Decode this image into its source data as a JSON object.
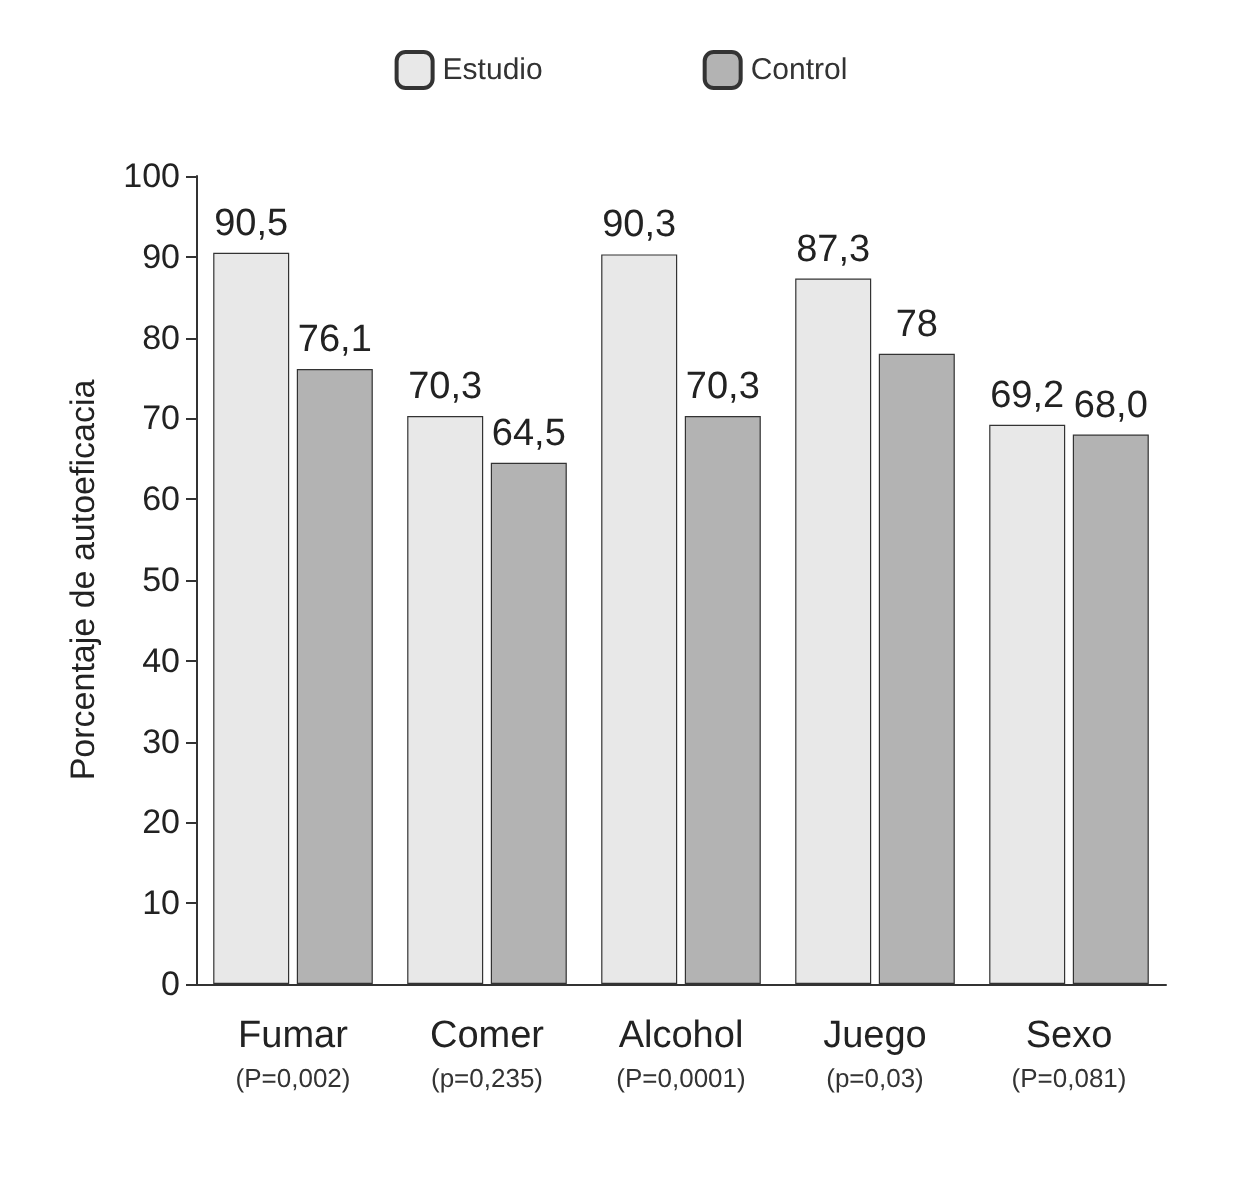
{
  "chart_data": {
    "type": "bar",
    "ylabel": "Porcentaje de autoeficacia",
    "categories": [
      "Fumar\n(P=0,002)",
      "Comer\n(p=0,235)",
      "Alcohol\n(P=0,0001)",
      "Juego\n(p=0,03)",
      "Sexo\n(P=0,081)"
    ],
    "series": [
      {
        "name": "Estudio",
        "color": "#e8e8e8",
        "values": [
          90.5,
          70.3,
          90.3,
          87.3,
          69.2
        ],
        "value_labels": [
          "90,5",
          "70,3",
          "90,3",
          "87,3",
          "69,2"
        ]
      },
      {
        "name": "Control",
        "color": "#b3b3b3",
        "values": [
          76.1,
          64.5,
          70.3,
          78,
          68.0
        ],
        "value_labels": [
          "76,1",
          "64,5",
          "70,3",
          "78",
          "68,0"
        ]
      }
    ],
    "ylim": [
      0,
      100
    ],
    "yticks": [
      0,
      10,
      20,
      30,
      40,
      50,
      60,
      70,
      80,
      90,
      100
    ],
    "grid": false,
    "legend": "top"
  }
}
